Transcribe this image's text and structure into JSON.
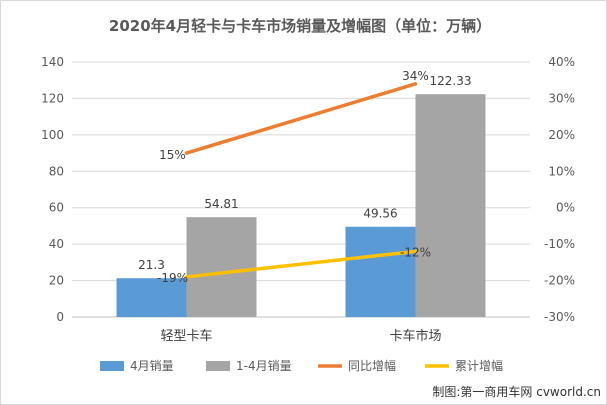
{
  "chart_data": {
    "type": "bar",
    "title": "2020年4月轻卡与卡车市场销量及增幅图（单位：万辆）",
    "categories": [
      "轻型卡车",
      "卡车市场"
    ],
    "series": [
      {
        "name": "4月销量",
        "kind": "bar",
        "axis": "left",
        "color": "#5b9bd5",
        "values": [
          21.3,
          49.56
        ],
        "labels": [
          "21.3",
          "49.56"
        ]
      },
      {
        "name": "1-4月销量",
        "kind": "bar",
        "axis": "left",
        "color": "#a5a5a5",
        "values": [
          54.81,
          122.33
        ],
        "labels": [
          "54.81",
          "122.33"
        ]
      },
      {
        "name": "同比增幅",
        "kind": "line",
        "axis": "right",
        "color": "#ed7d31",
        "values": [
          15,
          34
        ],
        "labels": [
          "15%",
          "34%"
        ]
      },
      {
        "name": "累计增幅",
        "kind": "line",
        "axis": "right",
        "color": "#ffc000",
        "values": [
          -19,
          -12
        ],
        "labels": [
          "-19%",
          "-12%"
        ]
      }
    ],
    "y_left": {
      "range": [
        0,
        140
      ],
      "ticks": [
        "0",
        "20",
        "40",
        "60",
        "80",
        "100",
        "120",
        "140"
      ]
    },
    "y_right": {
      "range": [
        -30,
        40
      ],
      "unit": "%",
      "ticks": [
        "-30%",
        "-20%",
        "-10%",
        "0%",
        "10%",
        "20%",
        "30%",
        "40%"
      ]
    },
    "grid": true,
    "legend_position": "bottom"
  },
  "credit": "制图:第一商用车网 cvworld.cn"
}
